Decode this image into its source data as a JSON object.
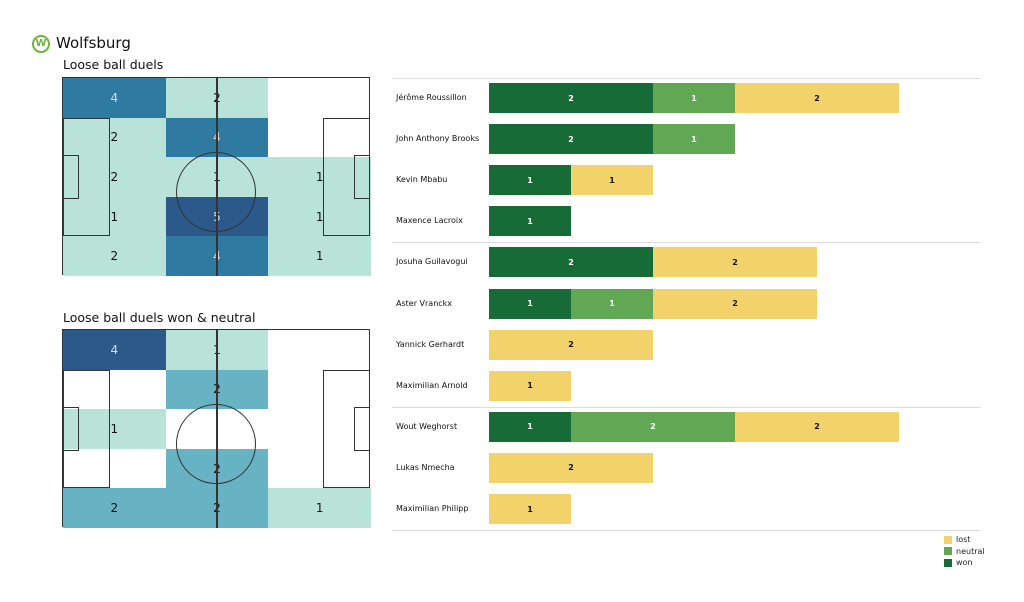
{
  "header": {
    "team": "Wolfsburg",
    "logo_text": "W"
  },
  "chart_data": [
    {
      "type": "heatmap",
      "title": "Loose ball duels",
      "grid": [
        [
          4,
          2,
          null
        ],
        [
          2,
          4,
          null
        ],
        [
          2,
          1,
          1
        ],
        [
          1,
          5,
          1
        ],
        [
          2,
          4,
          1
        ]
      ]
    },
    {
      "type": "heatmap",
      "title": "Loose ball duels won & neutral",
      "grid": [
        [
          4,
          1,
          null
        ],
        [
          null,
          2,
          null
        ],
        [
          1,
          null,
          null
        ],
        [
          null,
          2,
          null
        ],
        [
          2,
          2,
          1
        ]
      ]
    },
    {
      "type": "bar",
      "orientation": "horizontal",
      "stacked": true,
      "categories": [
        "Jérôme Roussillon",
        "John Anthony Brooks",
        "Kevin Mbabu",
        "Maxence Lacroix",
        "Josuha Guilavogui",
        "Aster Vranckx",
        "Yannick Gerhardt",
        "Maximilian Arnold",
        "Wout Weghorst",
        "Lukas Nmecha",
        "Maximilian Philipp"
      ],
      "series": [
        {
          "name": "won",
          "color": "#166b37",
          "values": [
            2,
            2,
            1,
            1,
            2,
            1,
            0,
            0,
            1,
            0,
            0
          ]
        },
        {
          "name": "neutral",
          "color": "#62a854",
          "values": [
            1,
            1,
            0,
            0,
            0,
            1,
            0,
            0,
            2,
            0,
            0
          ]
        },
        {
          "name": "lost",
          "color": "#f2d36b",
          "values": [
            2,
            0,
            1,
            0,
            2,
            2,
            2,
            1,
            2,
            2,
            1
          ]
        }
      ],
      "legend": [
        "lost",
        "neutral",
        "won"
      ],
      "legend_placement": "bottom-right"
    }
  ]
}
